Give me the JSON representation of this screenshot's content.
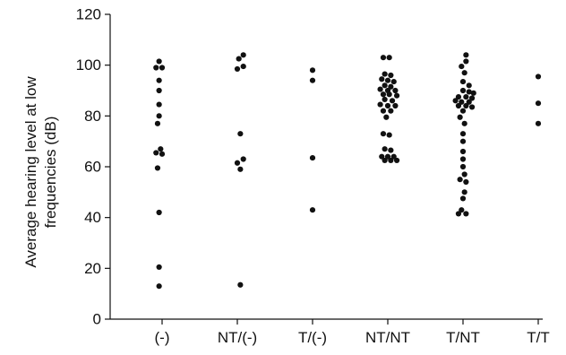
{
  "chart_data": {
    "type": "scatter",
    "title": "",
    "xlabel": "",
    "ylabel_lines": [
      "Average hearing level at low",
      "frequencies (dB)"
    ],
    "categories": [
      "(-)",
      "NT/(-)",
      "T/(-)",
      "NT/NT",
      "T/NT",
      "T/T"
    ],
    "ylim": [
      0,
      120
    ],
    "yticks": [
      0,
      20,
      40,
      60,
      80,
      100,
      120
    ],
    "grid": false,
    "legend": "none",
    "point_color": "#111111",
    "series": [
      {
        "category": "(-)",
        "points": [
          {
            "dx": -0.04,
            "y": 101.5
          },
          {
            "dx": -0.08,
            "y": 99
          },
          {
            "dx": 0.0,
            "y": 99
          },
          {
            "dx": -0.04,
            "y": 94
          },
          {
            "dx": -0.04,
            "y": 90
          },
          {
            "dx": -0.04,
            "y": 84.5
          },
          {
            "dx": -0.04,
            "y": 80
          },
          {
            "dx": -0.06,
            "y": 77
          },
          {
            "dx": -0.02,
            "y": 67
          },
          {
            "dx": -0.08,
            "y": 65.5
          },
          {
            "dx": 0.0,
            "y": 65
          },
          {
            "dx": -0.06,
            "y": 59.5
          },
          {
            "dx": -0.04,
            "y": 42
          },
          {
            "dx": -0.04,
            "y": 20.5
          },
          {
            "dx": -0.04,
            "y": 13
          }
        ]
      },
      {
        "category": "NT/(-)",
        "points": [
          {
            "dx": 0.08,
            "y": 104
          },
          {
            "dx": 0.02,
            "y": 102.5
          },
          {
            "dx": 0.08,
            "y": 99.5
          },
          {
            "dx": 0.0,
            "y": 98.5
          },
          {
            "dx": 0.04,
            "y": 73
          },
          {
            "dx": 0.08,
            "y": 63
          },
          {
            "dx": 0.0,
            "y": 61.5
          },
          {
            "dx": 0.04,
            "y": 59
          },
          {
            "dx": 0.04,
            "y": 13.5
          }
        ]
      },
      {
        "category": "T/(-)",
        "points": [
          {
            "dx": 0.0,
            "y": 98
          },
          {
            "dx": 0.0,
            "y": 94
          },
          {
            "dx": 0.0,
            "y": 63.5
          },
          {
            "dx": 0.0,
            "y": 43
          }
        ]
      },
      {
        "category": "NT/NT",
        "points": [
          {
            "dx": -0.06,
            "y": 103
          },
          {
            "dx": 0.02,
            "y": 103
          },
          {
            "dx": -0.04,
            "y": 96.5
          },
          {
            "dx": 0.04,
            "y": 96
          },
          {
            "dx": -0.08,
            "y": 94.5
          },
          {
            "dx": 0.0,
            "y": 94
          },
          {
            "dx": 0.08,
            "y": 93.5
          },
          {
            "dx": -0.04,
            "y": 92
          },
          {
            "dx": 0.04,
            "y": 91.5
          },
          {
            "dx": -0.1,
            "y": 90.5
          },
          {
            "dx": 0.0,
            "y": 90
          },
          {
            "dx": 0.1,
            "y": 90
          },
          {
            "dx": -0.06,
            "y": 88.5
          },
          {
            "dx": 0.02,
            "y": 88.5
          },
          {
            "dx": 0.12,
            "y": 88
          },
          {
            "dx": -0.04,
            "y": 86.5
          },
          {
            "dx": 0.06,
            "y": 86
          },
          {
            "dx": -0.1,
            "y": 84.5
          },
          {
            "dx": 0.0,
            "y": 84
          },
          {
            "dx": 0.1,
            "y": 84
          },
          {
            "dx": -0.06,
            "y": 82
          },
          {
            "dx": 0.04,
            "y": 82
          },
          {
            "dx": -0.02,
            "y": 79.5
          },
          {
            "dx": -0.06,
            "y": 73
          },
          {
            "dx": 0.02,
            "y": 72.5
          },
          {
            "dx": -0.04,
            "y": 67
          },
          {
            "dx": 0.04,
            "y": 66.5
          },
          {
            "dx": -0.08,
            "y": 64
          },
          {
            "dx": 0.0,
            "y": 64
          },
          {
            "dx": 0.08,
            "y": 64
          },
          {
            "dx": -0.04,
            "y": 62.5
          },
          {
            "dx": 0.04,
            "y": 62.5
          },
          {
            "dx": 0.12,
            "y": 62.5
          }
        ]
      },
      {
        "category": "T/NT",
        "points": [
          {
            "dx": 0.04,
            "y": 104
          },
          {
            "dx": 0.04,
            "y": 101.5
          },
          {
            "dx": -0.02,
            "y": 99.5
          },
          {
            "dx": 0.02,
            "y": 97
          },
          {
            "dx": 0.0,
            "y": 93.5
          },
          {
            "dx": 0.08,
            "y": 92
          },
          {
            "dx": 0.0,
            "y": 90
          },
          {
            "dx": 0.08,
            "y": 89.5
          },
          {
            "dx": 0.14,
            "y": 89
          },
          {
            "dx": -0.06,
            "y": 87.5
          },
          {
            "dx": 0.04,
            "y": 87.5
          },
          {
            "dx": 0.12,
            "y": 87
          },
          {
            "dx": -0.1,
            "y": 86
          },
          {
            "dx": -0.02,
            "y": 85.5
          },
          {
            "dx": 0.08,
            "y": 85.5
          },
          {
            "dx": -0.06,
            "y": 84
          },
          {
            "dx": 0.04,
            "y": 84
          },
          {
            "dx": 0.12,
            "y": 83.5
          },
          {
            "dx": 0.0,
            "y": 82
          },
          {
            "dx": -0.04,
            "y": 79.5
          },
          {
            "dx": 0.02,
            "y": 77
          },
          {
            "dx": 0.0,
            "y": 73
          },
          {
            "dx": 0.0,
            "y": 70
          },
          {
            "dx": 0.0,
            "y": 66
          },
          {
            "dx": 0.0,
            "y": 63
          },
          {
            "dx": 0.0,
            "y": 60
          },
          {
            "dx": 0.02,
            "y": 57
          },
          {
            "dx": -0.04,
            "y": 55
          },
          {
            "dx": 0.04,
            "y": 54
          },
          {
            "dx": 0.02,
            "y": 50
          },
          {
            "dx": 0.0,
            "y": 47.5
          },
          {
            "dx": -0.02,
            "y": 43
          },
          {
            "dx": -0.06,
            "y": 41.5
          },
          {
            "dx": 0.04,
            "y": 41.5
          }
        ]
      },
      {
        "category": "T/T",
        "points": [
          {
            "dx": 0.0,
            "y": 95.5
          },
          {
            "dx": 0.0,
            "y": 85
          },
          {
            "dx": 0.0,
            "y": 77
          }
        ]
      }
    ]
  }
}
